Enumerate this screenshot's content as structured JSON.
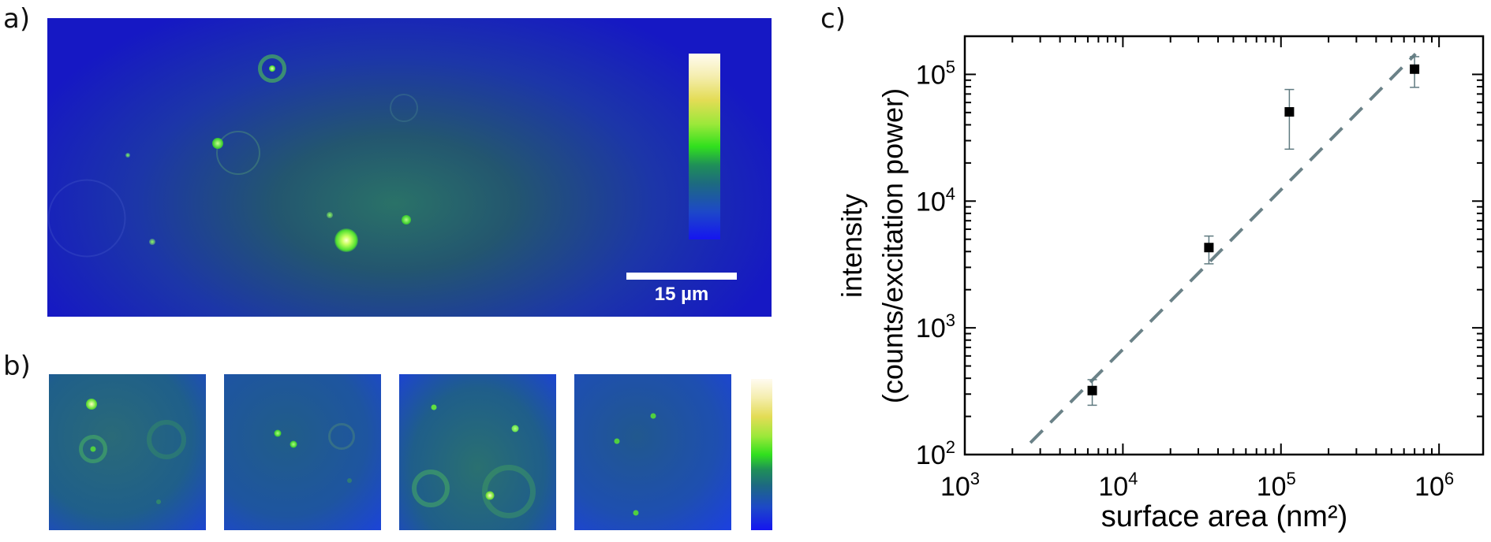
{
  "panels": {
    "a_label": "a)",
    "b_label": "b)",
    "c_label": "c)",
    "scale_bar_text": "15 µm"
  },
  "colors": {
    "marker": "#000000",
    "error_bar": "#5f7a80",
    "fit_line": "#6b8288",
    "axis": "#000000"
  },
  "chart_data": {
    "type": "scatter",
    "xscale": "log",
    "yscale": "log",
    "xlabel": "surface area (nm²)",
    "ylabel_line1": "intensity",
    "ylabel_line2": "(counts/excitation power)",
    "xlim": [
      1000,
      1900000
    ],
    "ylim": [
      100,
      200000
    ],
    "x_ticks": [
      {
        "value": 1000,
        "label": "10",
        "exp": "3"
      },
      {
        "value": 10000,
        "label": "10",
        "exp": "4"
      },
      {
        "value": 100000,
        "label": "10",
        "exp": "5"
      },
      {
        "value": 1000000,
        "label": "10",
        "exp": "6"
      }
    ],
    "y_ticks": [
      {
        "value": 100,
        "label": "10",
        "exp": "2"
      },
      {
        "value": 1000,
        "label": "10",
        "exp": "3"
      },
      {
        "value": 10000,
        "label": "10",
        "exp": "4"
      },
      {
        "value": 100000,
        "label": "10",
        "exp": "5"
      }
    ],
    "grid": false,
    "points": [
      {
        "x": 6400,
        "y": 320,
        "y_low": 245,
        "y_high": 390
      },
      {
        "x": 35000,
        "y": 4300,
        "y_low": 3200,
        "y_high": 5300
      },
      {
        "x": 113000,
        "y": 50600,
        "y_low": 25700,
        "y_high": 76000
      },
      {
        "x": 700000,
        "y": 110000,
        "y_low": 79000,
        "y_high": 138000
      }
    ],
    "fit_line": {
      "style": "dashed",
      "x": [
        2600,
        710000
      ],
      "y": [
        124,
        145000
      ]
    }
  }
}
